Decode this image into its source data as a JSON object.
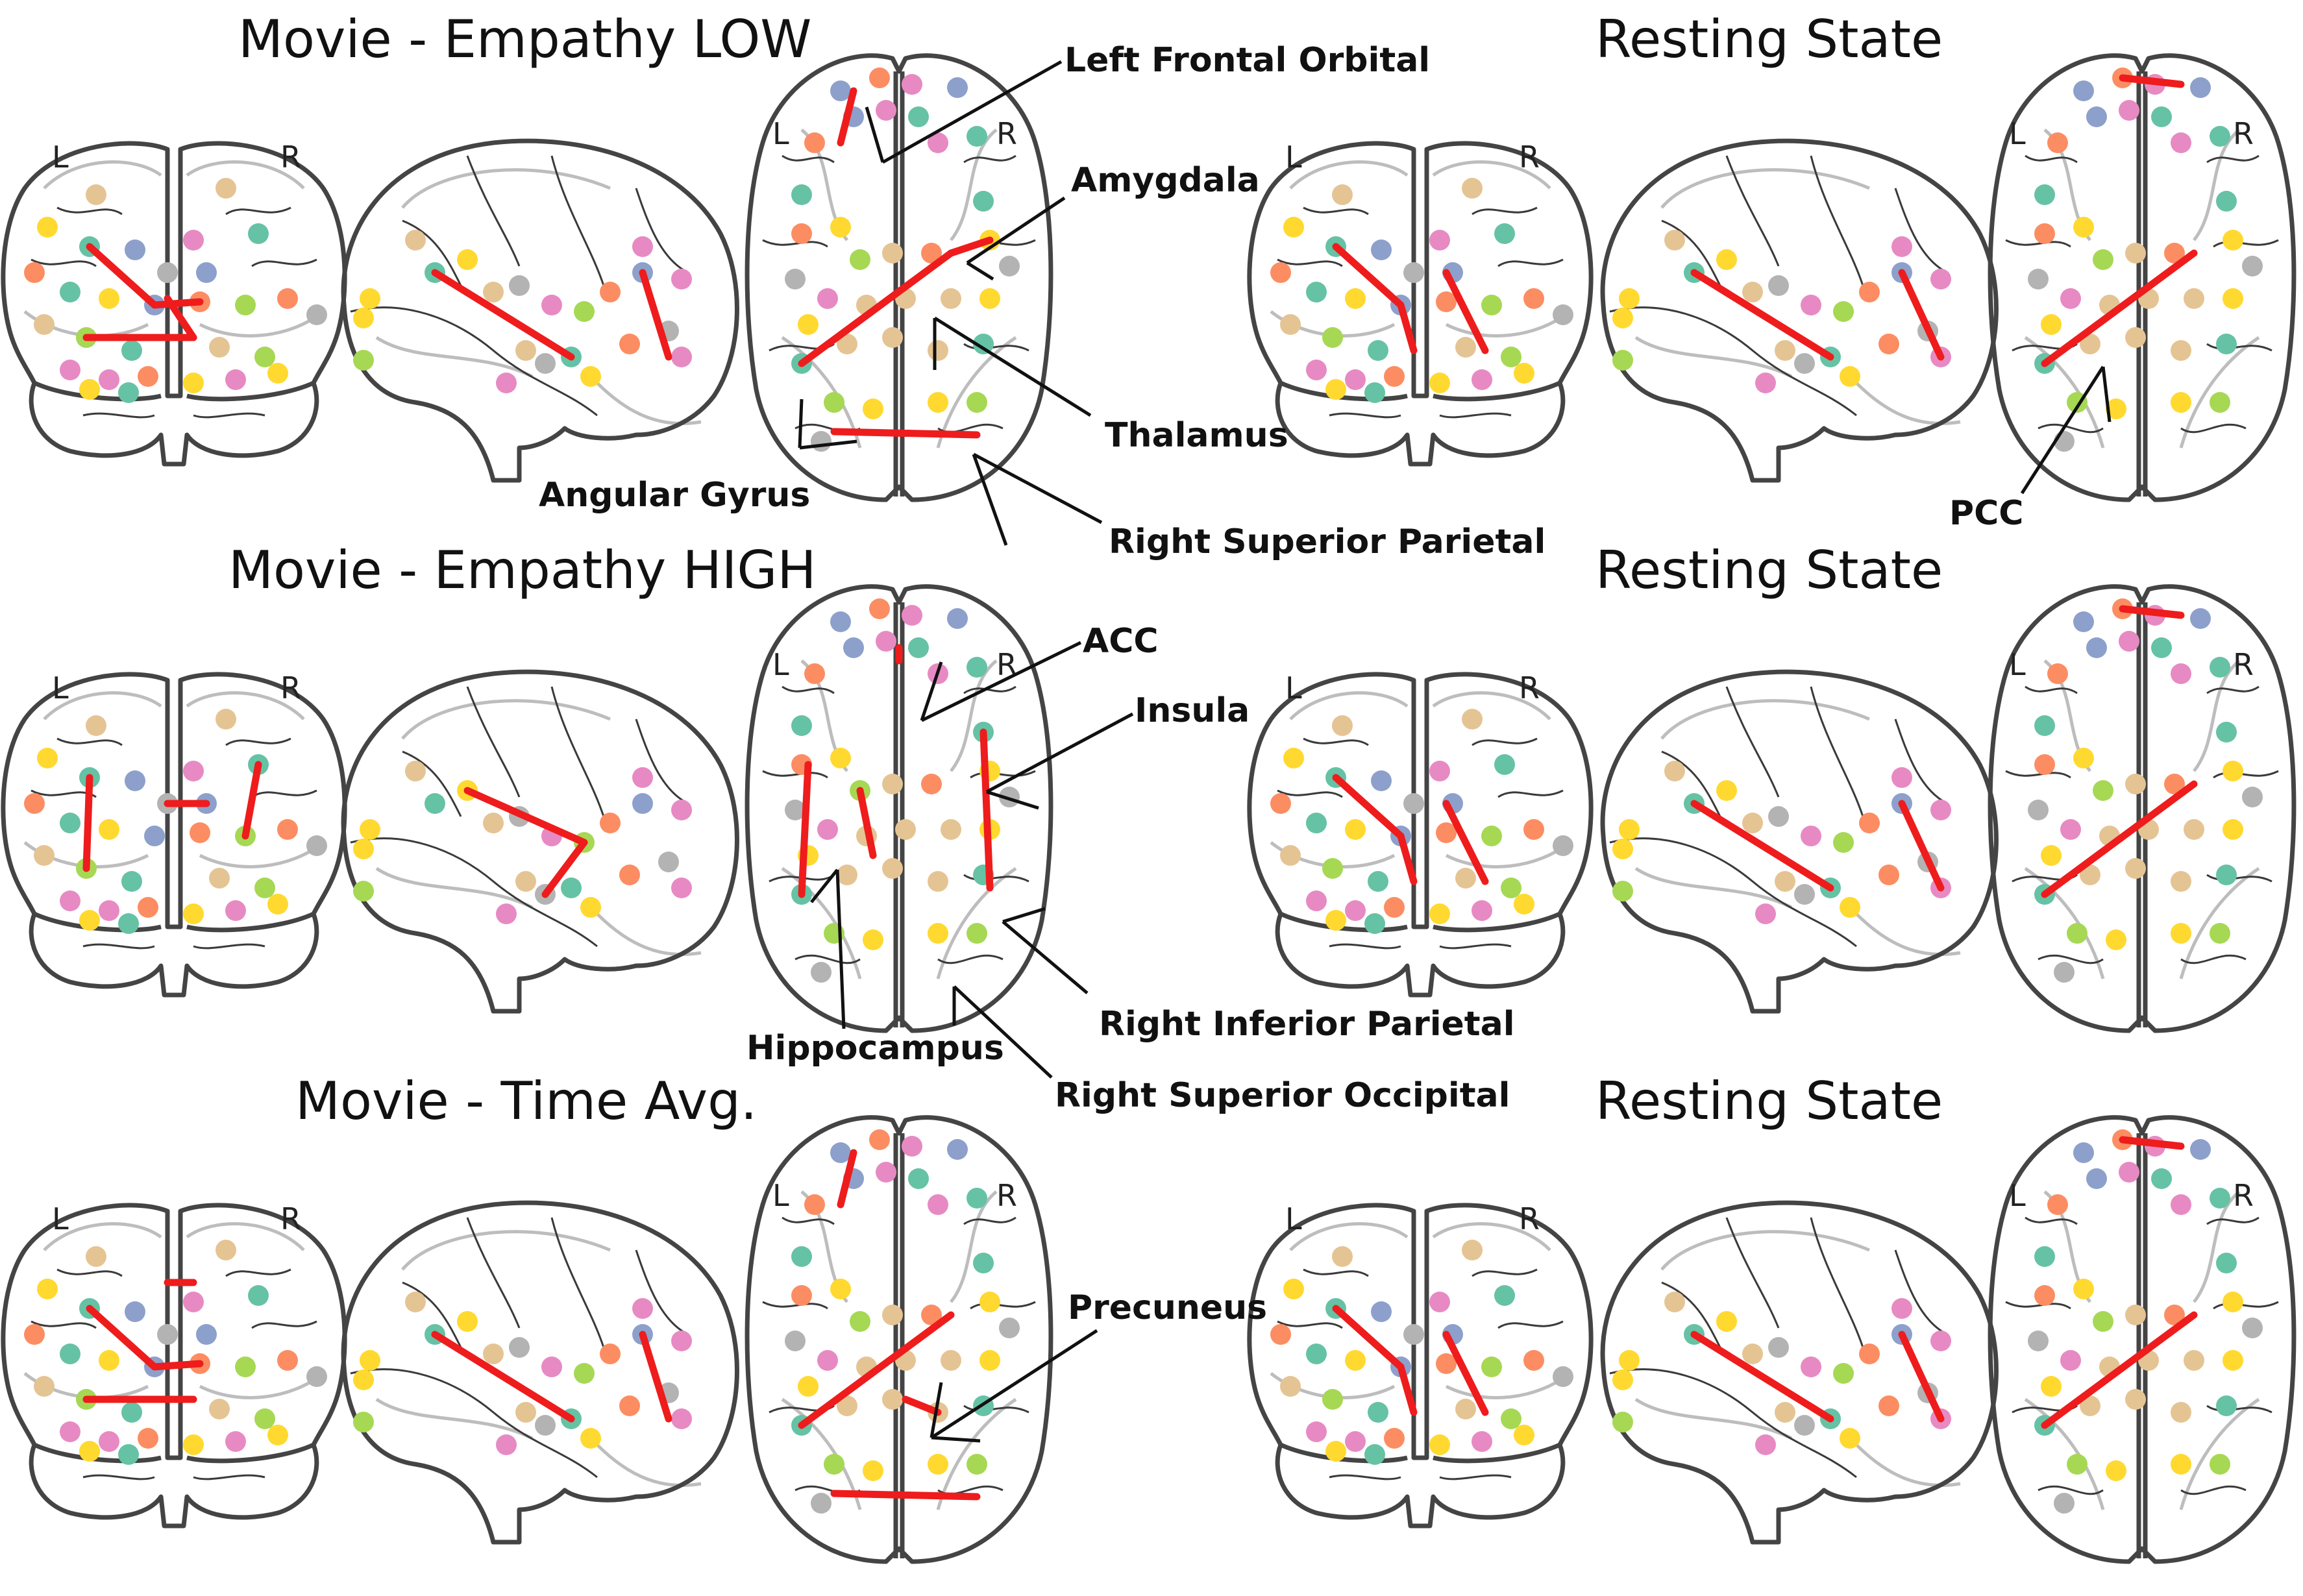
{
  "rows": [
    {
      "title": "Movie - Empathy LOW",
      "rest_title": "Resting State"
    },
    {
      "title": "Movie - Empathy HIGH",
      "rest_title": "Resting State"
    },
    {
      "title": "Movie - Time Avg.",
      "rest_title": "Resting State"
    }
  ],
  "hemisphere_labels": {
    "left": "L",
    "right": "R"
  },
  "annotations": {
    "row1": [
      "Left Frontal Orbital",
      "Amygdala",
      "Thalamus",
      "Angular Gyrus",
      "Right Superior Parietal",
      "PCC"
    ],
    "row2": [
      "ACC",
      "Insula",
      "Right Inferior Parietal",
      "Hippocampus",
      "Right Superior Occipital"
    ],
    "row3": [
      "Precuneus"
    ]
  },
  "colors": {
    "edge": "#ee1c1c",
    "outline": "#444444",
    "node_palette": [
      "#66c2a5",
      "#fc8d62",
      "#8da0cb",
      "#e78ac3",
      "#a6d854",
      "#ffd92f",
      "#e5c494",
      "#b3b3b3"
    ]
  }
}
